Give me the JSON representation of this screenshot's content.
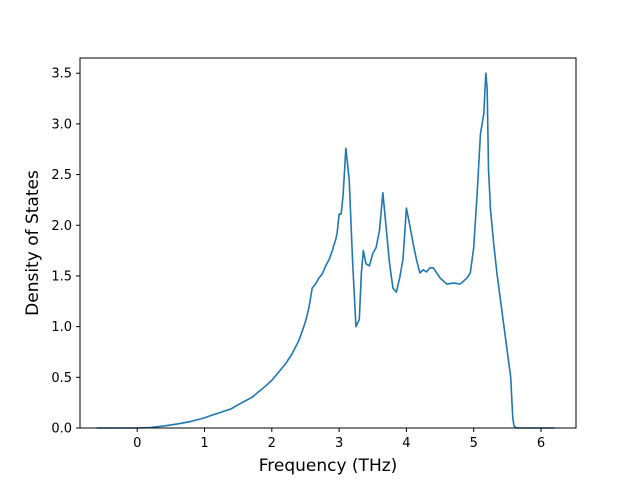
{
  "chart_data": {
    "type": "line",
    "title": "",
    "xlabel": "Frequency (THz)",
    "ylabel": "Density of States",
    "xlim": [
      -0.85,
      6.52
    ],
    "ylim": [
      0.0,
      3.65
    ],
    "xticks": [
      0,
      1,
      2,
      3,
      4,
      5,
      6
    ],
    "yticks": [
      0.0,
      0.5,
      1.0,
      1.5,
      2.0,
      2.5,
      3.0,
      3.5
    ],
    "xtick_labels": [
      "0",
      "1",
      "2",
      "3",
      "4",
      "5",
      "6"
    ],
    "ytick_labels": [
      "0.0",
      "0.5",
      "1.0",
      "1.5",
      "2.0",
      "2.5",
      "3.0",
      "3.5"
    ],
    "grid": false,
    "legend": "none",
    "series": [
      {
        "color": "#1f77b4",
        "x": [
          -0.6,
          -0.3,
          0.0,
          0.2,
          0.4,
          0.6,
          0.8,
          1.0,
          1.1,
          1.2,
          1.4,
          1.5,
          1.6,
          1.7,
          1.8,
          1.9,
          2.0,
          2.1,
          2.2,
          2.3,
          2.4,
          2.45,
          2.5,
          2.55,
          2.6,
          2.65,
          2.7,
          2.75,
          2.8,
          2.85,
          2.9,
          2.92,
          2.95,
          2.97,
          3.0,
          3.03,
          3.06,
          3.1,
          3.15,
          3.2,
          3.25,
          3.3,
          3.33,
          3.36,
          3.4,
          3.45,
          3.5,
          3.55,
          3.6,
          3.65,
          3.7,
          3.75,
          3.8,
          3.85,
          3.9,
          3.95,
          4.0,
          4.05,
          4.1,
          4.15,
          4.2,
          4.25,
          4.3,
          4.35,
          4.4,
          4.5,
          4.6,
          4.7,
          4.8,
          4.9,
          4.95,
          5.0,
          5.05,
          5.1,
          5.15,
          5.18,
          5.2,
          5.22,
          5.25,
          5.3,
          5.35,
          5.4,
          5.45,
          5.5,
          5.55,
          5.58,
          5.6,
          5.63,
          5.8,
          6.0,
          6.2
        ],
        "y": [
          0.0,
          0.0,
          0.0,
          0.005,
          0.02,
          0.04,
          0.065,
          0.1,
          0.125,
          0.145,
          0.19,
          0.23,
          0.265,
          0.3,
          0.355,
          0.41,
          0.47,
          0.55,
          0.63,
          0.73,
          0.86,
          0.95,
          1.05,
          1.18,
          1.38,
          1.42,
          1.48,
          1.52,
          1.6,
          1.66,
          1.75,
          1.8,
          1.86,
          1.92,
          2.11,
          2.11,
          2.3,
          2.76,
          2.45,
          1.65,
          1.0,
          1.07,
          1.52,
          1.75,
          1.62,
          1.6,
          1.72,
          1.78,
          1.95,
          2.32,
          1.97,
          1.62,
          1.38,
          1.34,
          1.48,
          1.67,
          2.17,
          2.0,
          1.82,
          1.66,
          1.53,
          1.56,
          1.54,
          1.58,
          1.58,
          1.48,
          1.42,
          1.43,
          1.42,
          1.48,
          1.53,
          1.78,
          2.3,
          2.9,
          3.1,
          3.5,
          3.35,
          2.55,
          2.15,
          1.8,
          1.5,
          1.25,
          1.0,
          0.75,
          0.5,
          0.1,
          0.02,
          0.0,
          0.0,
          0.0,
          0.0
        ]
      }
    ]
  }
}
